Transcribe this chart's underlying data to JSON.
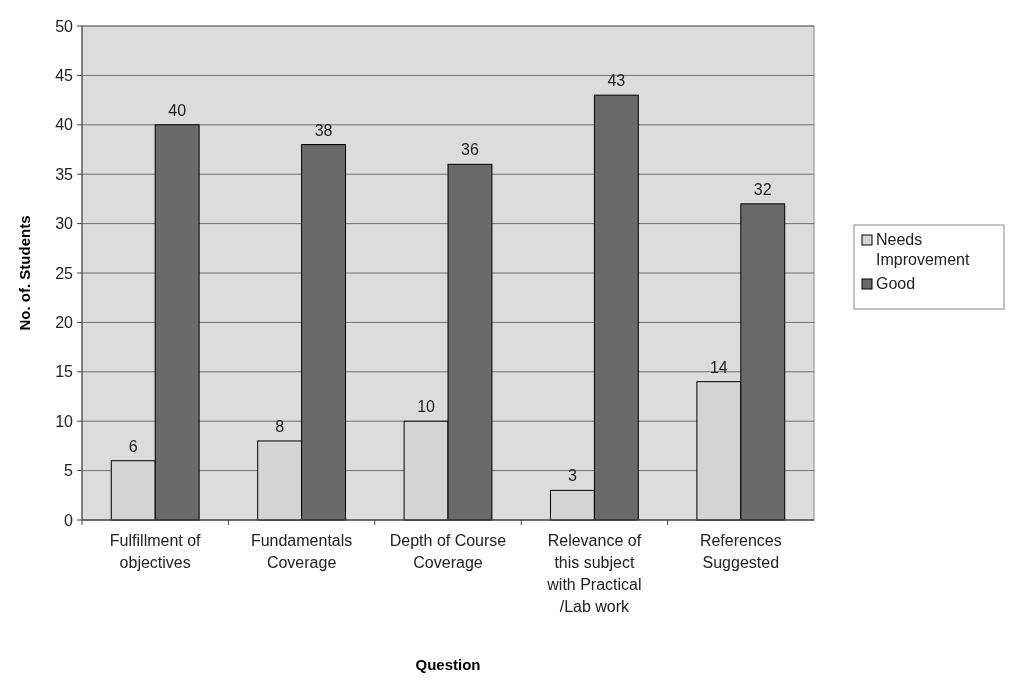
{
  "chart_data": {
    "type": "bar",
    "xlabel": "Question",
    "ylabel": "No. of. Students",
    "categories": [
      "Fulfillment of objectives",
      "Fundamentals Coverage",
      "Depth of Course Coverage",
      "Relevance of this subject with Practical /Lab work",
      "References Suggested"
    ],
    "series": [
      {
        "name": "Needs Improvement",
        "color": "#d4d4d4",
        "values": [
          6,
          8,
          10,
          3,
          14
        ]
      },
      {
        "name": "Good",
        "color": "#6a6a6a",
        "values": [
          40,
          38,
          36,
          43,
          32
        ]
      }
    ],
    "ylim": [
      0,
      50
    ],
    "yticks": [
      0,
      5,
      10,
      15,
      20,
      25,
      30,
      35,
      40,
      45,
      50
    ],
    "grid": "y",
    "legend": "right",
    "data_labels": true
  }
}
